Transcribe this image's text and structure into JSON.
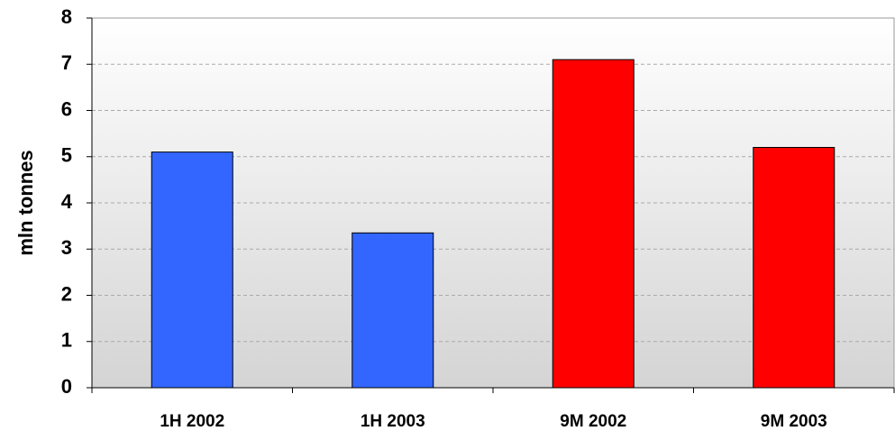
{
  "chart_data": {
    "type": "bar",
    "y_label": "mln tonnes",
    "categories": [
      "1H 2002",
      "1H 2003",
      "9M 2002",
      "9M 2003"
    ],
    "values": [
      5.1,
      3.35,
      7.1,
      5.2
    ],
    "colors": [
      "#3366ff",
      "#3366ff",
      "#ff0000",
      "#ff0000"
    ],
    "ylim": [
      0,
      8
    ],
    "yticks": [
      0,
      1,
      2,
      3,
      4,
      5,
      6,
      7,
      8
    ],
    "grid": true
  }
}
